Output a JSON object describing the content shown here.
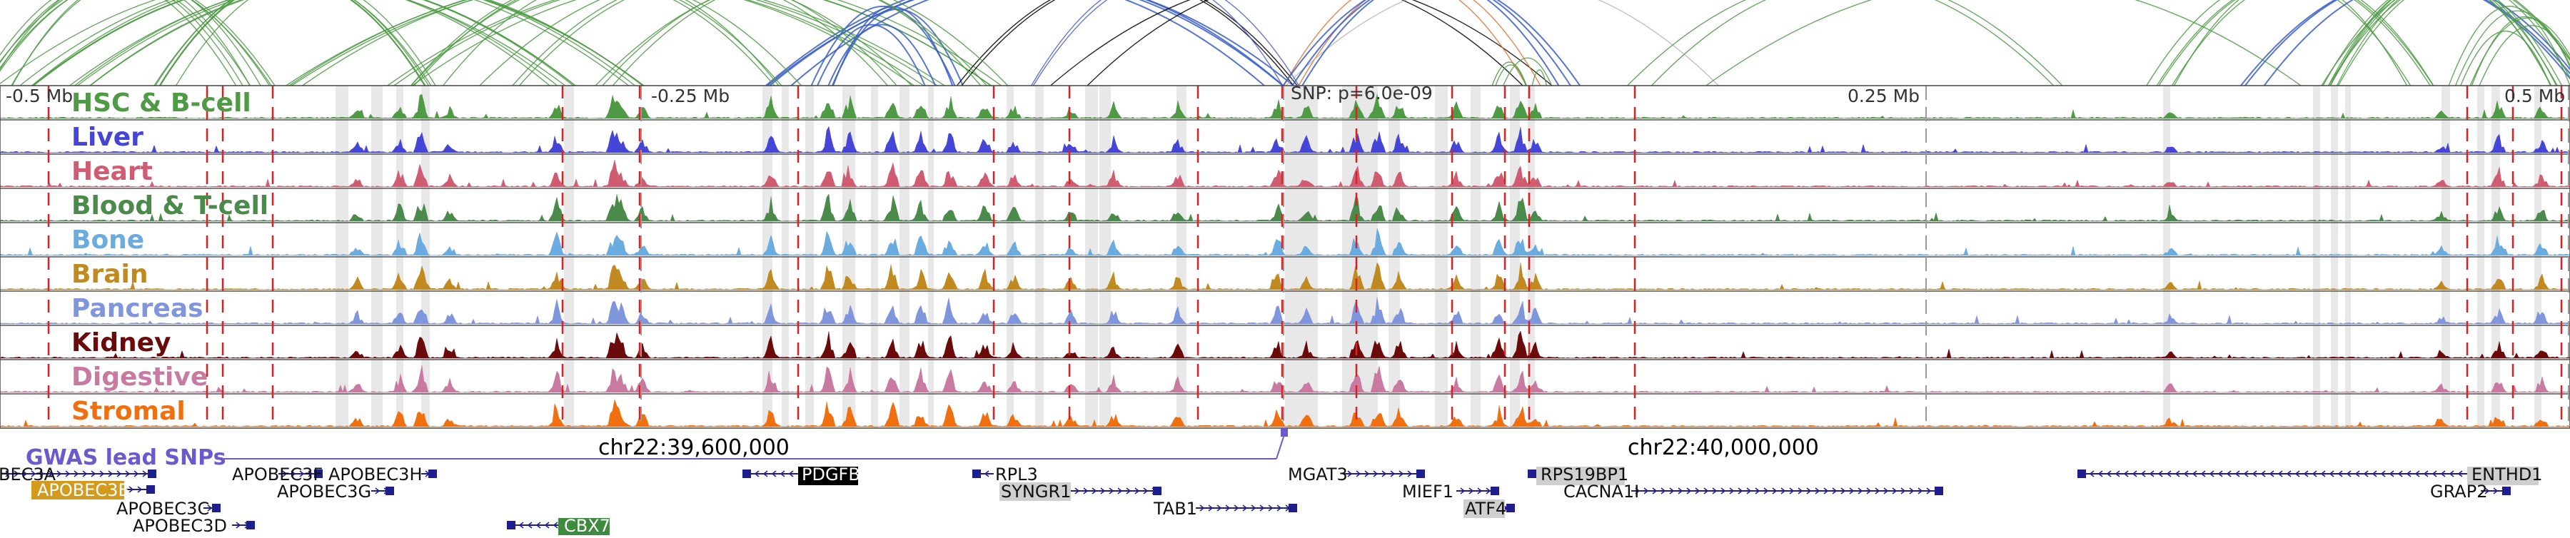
{
  "region": {
    "coord_labels": [
      "-0.5 Mb",
      "-0.25 Mb",
      "SNP: p=6.0e-09",
      "0.25 Mb",
      "0.5 Mb"
    ],
    "chr_labels": [
      "chr22:39,600,000",
      "chr22:40,000,000"
    ],
    "gwas_label": "GWAS lead SNPs"
  },
  "tracks": [
    {
      "name": "HSC & B-cell",
      "color": "#4f9a45"
    },
    {
      "name": "Liver",
      "color": "#4545d8"
    },
    {
      "name": "Heart",
      "color": "#d05c72"
    },
    {
      "name": "Blood & T-cell",
      "color": "#4a8a4a"
    },
    {
      "name": "Bone",
      "color": "#6aace0"
    },
    {
      "name": "Brain",
      "color": "#c08a20"
    },
    {
      "name": "Pancreas",
      "color": "#7f96dc"
    },
    {
      "name": "Kidney",
      "color": "#6a0a0a"
    },
    {
      "name": "Digestive",
      "color": "#c87aa0"
    },
    {
      "name": "Stromal",
      "color": "#f07010"
    }
  ],
  "genes": [
    {
      "name": "BEC3A",
      "highlight": null
    },
    {
      "name": "APOBEC3B",
      "highlight": "#d49a1e"
    },
    {
      "name": "APOBEC3C",
      "highlight": null
    },
    {
      "name": "APOBEC3D",
      "highlight": null
    },
    {
      "name": "APOBEC3F",
      "highlight": null
    },
    {
      "name": "APOBEC3G",
      "highlight": null
    },
    {
      "name": "APOBEC3H",
      "highlight": null
    },
    {
      "name": "CBX7",
      "highlight": "#3e8a3e"
    },
    {
      "name": "PDGFB",
      "highlight": "#000000"
    },
    {
      "name": "RPL3",
      "highlight": null
    },
    {
      "name": "SYNGR1",
      "highlight": "#cfcfcf"
    },
    {
      "name": "TAB1",
      "highlight": null
    },
    {
      "name": "MGAT3",
      "highlight": null
    },
    {
      "name": "MIEF1",
      "highlight": null
    },
    {
      "name": "ATF4",
      "highlight": "#cfcfcf"
    },
    {
      "name": "RPS19BP1",
      "highlight": "#cfcfcf"
    },
    {
      "name": "CACNA1I",
      "highlight": null
    },
    {
      "name": "ENTHD1",
      "highlight": "#cfcfcf"
    },
    {
      "name": "GRAP2",
      "highlight": null
    }
  ]
}
